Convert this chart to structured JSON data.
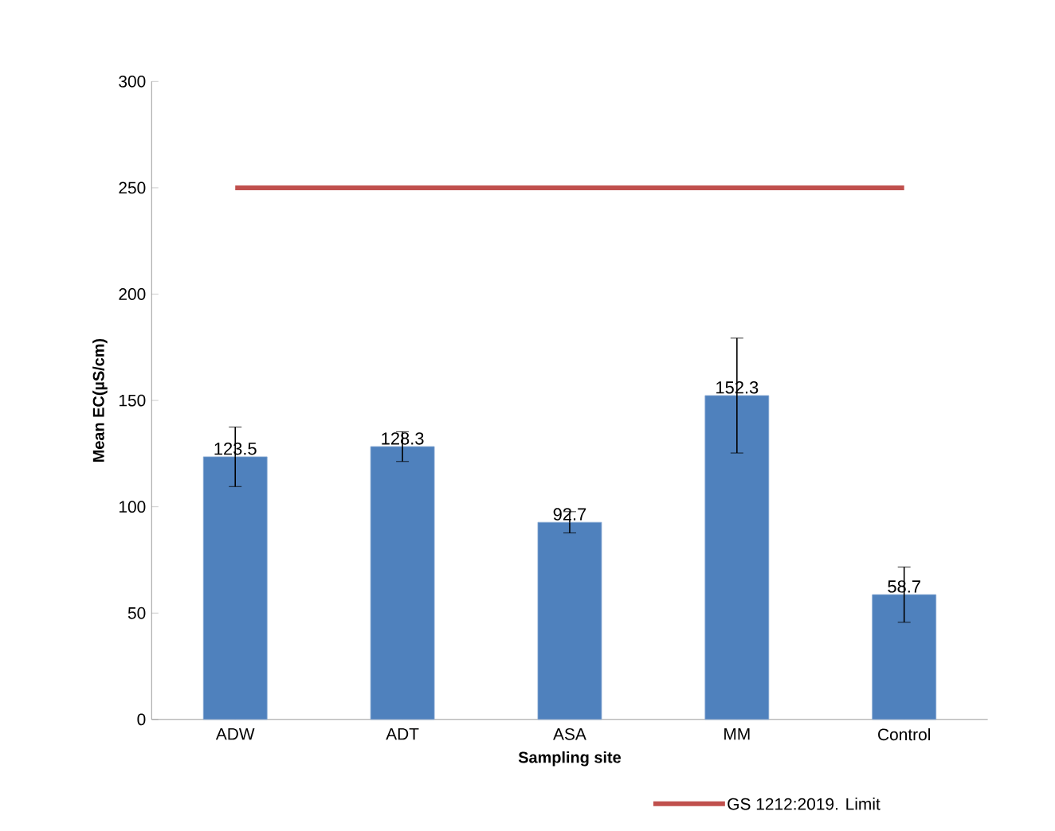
{
  "chart_data": {
    "type": "bar",
    "xlabel": "Sampling site",
    "ylabel": "Mean EC(µS/cm)",
    "categories": [
      "ADW",
      "ADT",
      "ASA",
      "MM",
      "Control"
    ],
    "series": [
      {
        "color": "#4f81bd",
        "values": [
          123.5,
          128.3,
          92.7,
          152.3,
          58.7
        ],
        "errors": [
          14,
          7,
          5,
          27,
          13
        ],
        "value_labels": [
          "123.5",
          "128.3",
          "92.7",
          "152.3",
          "58.7"
        ]
      },
      {
        "type": "line",
        "name": "GS 1212:2019. Limit",
        "color": "#c0504d",
        "values": [
          250,
          250,
          250,
          250,
          250
        ]
      }
    ],
    "ylim": [
      0,
      300
    ],
    "yticks": [
      0,
      50,
      100,
      150,
      200,
      250,
      300
    ],
    "grid": false,
    "legend": "bottom right"
  }
}
